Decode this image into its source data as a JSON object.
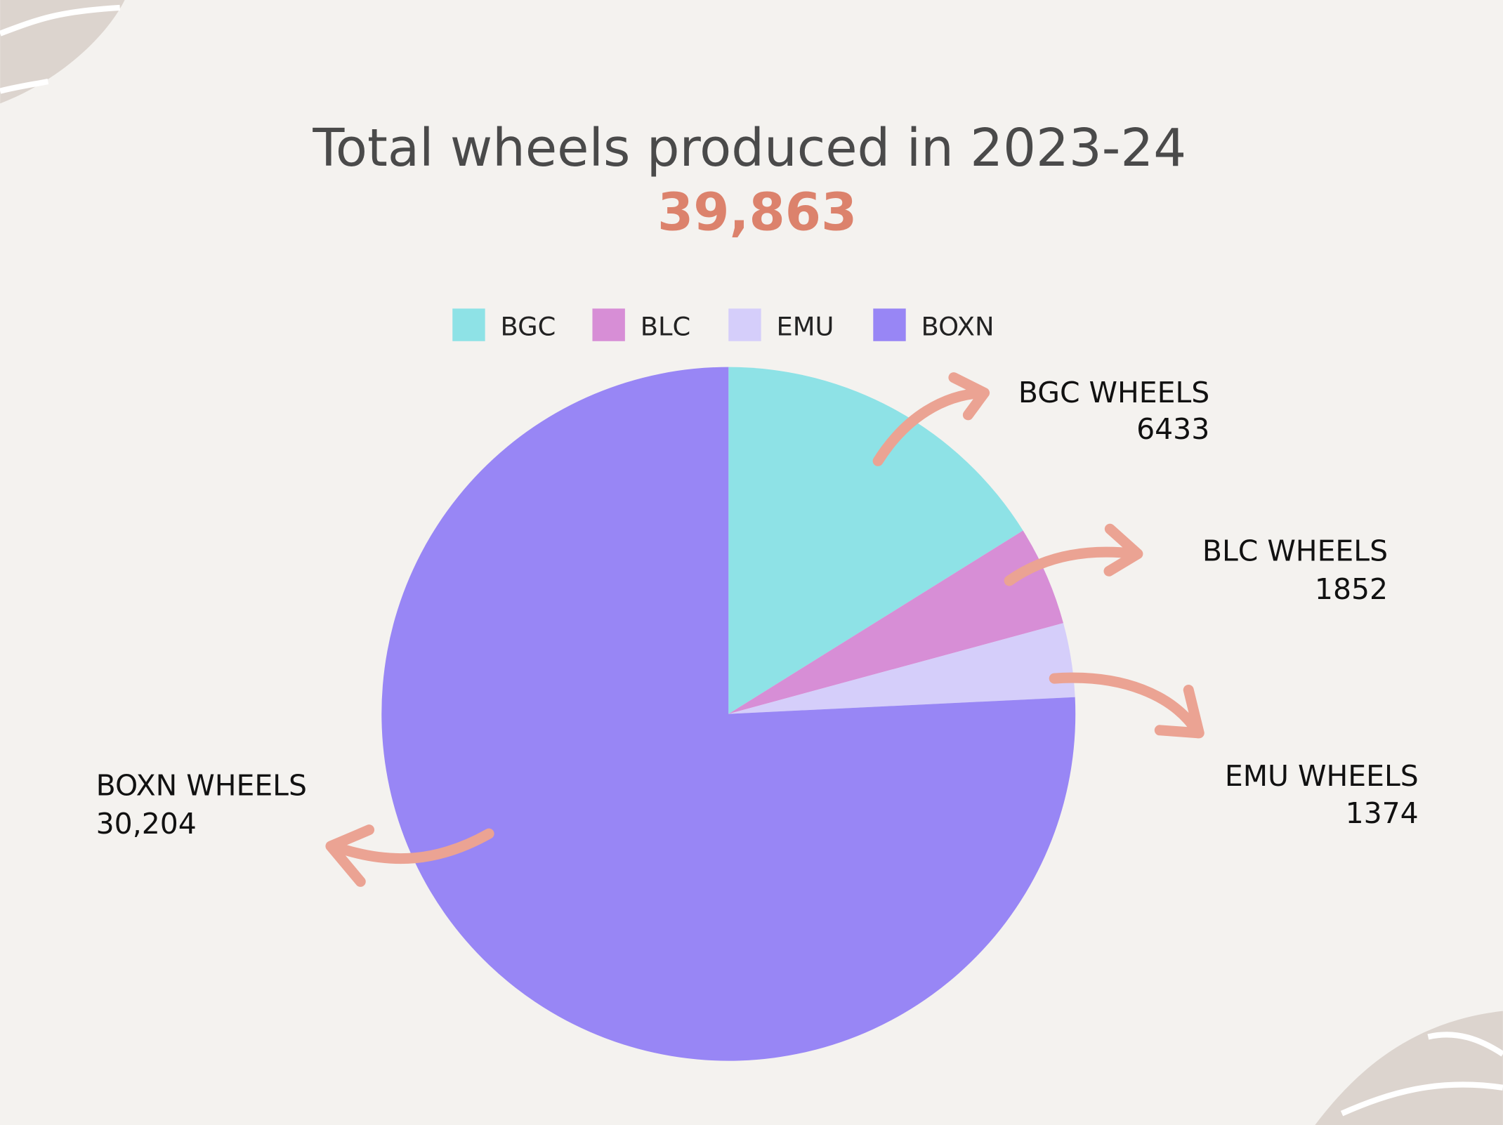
{
  "chart_data": {
    "type": "pie",
    "title": "Total wheels produced in 2023-24",
    "total": "39,863",
    "legend_position": "top",
    "categories": [
      "BGC",
      "BLC",
      "EMU",
      "BOXN"
    ],
    "values": [
      6433,
      1852,
      1374,
      30204
    ],
    "colors": [
      "#8ee2e6",
      "#d78ed6",
      "#d5cefa",
      "#9886f5"
    ],
    "callouts": [
      {
        "label": "BGC WHEELS",
        "value": "6433"
      },
      {
        "label": "BLC WHEELS",
        "value": "1852"
      },
      {
        "label": "EMU WHEELS",
        "value": "1374"
      },
      {
        "label": "BOXN WHEELS",
        "value": "30,204"
      }
    ]
  },
  "colors": {
    "background": "#f4f2ef",
    "accent": "#dc826c",
    "arrow": "#eba393",
    "decor": "#dcd4ce"
  }
}
